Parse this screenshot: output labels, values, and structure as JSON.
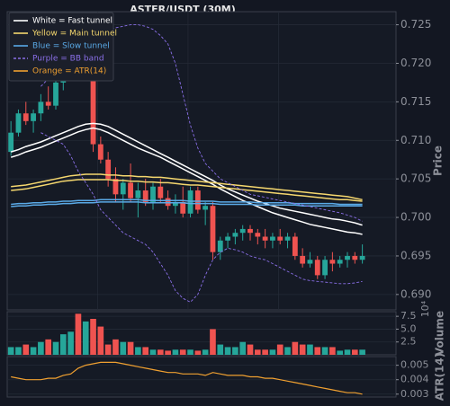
{
  "chart_data": [
    {
      "type": "candlestick",
      "title": "ASTER/USDT (30M)",
      "ylabel": "Price",
      "up_color": "#26a69a",
      "down_color": "#ef5350",
      "grid": true,
      "legend": "upper left",
      "ylim": [
        0.688,
        0.7267
      ],
      "yticks": [
        {
          "value": 0.69,
          "label": "0.690"
        },
        0.695,
        {
          "value": 0.7,
          "label": "0.700"
        },
        0.705,
        {
          "value": 0.71,
          "label": "0.710"
        },
        0.715,
        {
          "value": 0.72,
          "label": "0.720"
        },
        0.725
      ],
      "open": [
        0.7085,
        0.711,
        0.7135,
        0.7125,
        0.7135,
        0.715,
        0.7145,
        0.7175,
        0.719,
        0.7205,
        0.719,
        0.721,
        0.7095,
        0.7075,
        0.705,
        0.703,
        0.7045,
        0.7025,
        0.7035,
        0.702,
        0.704,
        0.7025,
        0.7015,
        0.702,
        0.7005,
        0.7035,
        0.701,
        0.7015,
        0.6955,
        0.697,
        0.6975,
        0.698,
        0.6985,
        0.698,
        0.6975,
        0.697,
        0.6975,
        0.697,
        0.6975,
        0.695,
        0.694,
        0.6945,
        0.6925,
        0.6945,
        0.694,
        0.6945,
        0.695,
        0.6945
      ],
      "high": [
        0.7125,
        0.714,
        0.715,
        0.714,
        0.716,
        0.717,
        0.7185,
        0.72,
        0.7215,
        0.7225,
        0.723,
        0.722,
        0.7105,
        0.7085,
        0.7065,
        0.705,
        0.707,
        0.7045,
        0.705,
        0.7045,
        0.705,
        0.7035,
        0.703,
        0.704,
        0.704,
        0.704,
        0.702,
        0.702,
        0.6975,
        0.698,
        0.6985,
        0.699,
        0.699,
        0.6985,
        0.6985,
        0.698,
        0.6985,
        0.698,
        0.698,
        0.696,
        0.6955,
        0.695,
        0.695,
        0.6955,
        0.695,
        0.6955,
        0.6955,
        0.6965
      ],
      "low": [
        0.708,
        0.7105,
        0.712,
        0.711,
        0.7125,
        0.714,
        0.714,
        0.7165,
        0.718,
        0.718,
        0.7185,
        0.7085,
        0.707,
        0.704,
        0.702,
        0.701,
        0.702,
        0.7,
        0.7015,
        0.701,
        0.702,
        0.701,
        0.7005,
        0.7,
        0.7,
        0.7005,
        0.699,
        0.6945,
        0.6945,
        0.696,
        0.6965,
        0.697,
        0.697,
        0.6965,
        0.696,
        0.696,
        0.6965,
        0.696,
        0.6945,
        0.6935,
        0.6935,
        0.692,
        0.692,
        0.693,
        0.6935,
        0.6935,
        0.694,
        0.694
      ],
      "close": [
        0.711,
        0.7135,
        0.7125,
        0.7135,
        0.715,
        0.7145,
        0.7175,
        0.719,
        0.7205,
        0.719,
        0.721,
        0.7095,
        0.7075,
        0.705,
        0.703,
        0.7045,
        0.7025,
        0.7035,
        0.702,
        0.704,
        0.7025,
        0.7015,
        0.702,
        0.7005,
        0.7035,
        0.701,
        0.7015,
        0.6955,
        0.697,
        0.6975,
        0.698,
        0.6985,
        0.698,
        0.6975,
        0.697,
        0.6975,
        0.697,
        0.6975,
        0.695,
        0.694,
        0.6945,
        0.6925,
        0.6945,
        0.694,
        0.6945,
        0.695,
        0.6945,
        0.695
      ],
      "series": [
        {
          "name": "White = Fast tunnel",
          "color": "#ffffff",
          "dashed": false,
          "upper": [
            0.7085,
            0.7088,
            0.7092,
            0.7095,
            0.7098,
            0.7102,
            0.7106,
            0.711,
            0.7114,
            0.7118,
            0.7121,
            0.7122,
            0.7121,
            0.7118,
            0.7113,
            0.7108,
            0.7103,
            0.7098,
            0.7093,
            0.7088,
            0.7083,
            0.7078,
            0.7073,
            0.7068,
            0.7063,
            0.7058,
            0.7053,
            0.7048,
            0.7042,
            0.7037,
            0.7033,
            0.7029,
            0.7025,
            0.7021,
            0.7018,
            0.7015,
            0.7012,
            0.701,
            0.7008,
            0.7006,
            0.7004,
            0.7002,
            0.7,
            0.6998,
            0.6997,
            0.6995,
            0.6993,
            0.699
          ],
          "lower": [
            0.7078,
            0.7081,
            0.7085,
            0.7088,
            0.7091,
            0.7095,
            0.7099,
            0.7103,
            0.7107,
            0.7111,
            0.7114,
            0.7116,
            0.7114,
            0.711,
            0.7105,
            0.71,
            0.7095,
            0.709,
            0.7086,
            0.7082,
            0.7078,
            0.7073,
            0.7068,
            0.7063,
            0.7058,
            0.7053,
            0.7048,
            0.7043,
            0.7037,
            0.7032,
            0.7027,
            0.7022,
            0.7018,
            0.7014,
            0.701,
            0.7006,
            0.7003,
            0.7,
            0.6997,
            0.6994,
            0.6991,
            0.6989,
            0.6987,
            0.6985,
            0.6983,
            0.6981,
            0.698,
            0.6978
          ]
        },
        {
          "name": "Yellow = Main tunnel",
          "color": "#f5d76e",
          "dashed": false,
          "upper": [
            0.704,
            0.7041,
            0.7042,
            0.7044,
            0.7046,
            0.7048,
            0.705,
            0.7052,
            0.7054,
            0.7055,
            0.7056,
            0.7056,
            0.7056,
            0.7055,
            0.7055,
            0.7054,
            0.7054,
            0.7053,
            0.7053,
            0.7052,
            0.7052,
            0.7051,
            0.705,
            0.7049,
            0.7048,
            0.7047,
            0.7046,
            0.7045,
            0.7044,
            0.7043,
            0.7042,
            0.7041,
            0.704,
            0.7039,
            0.7038,
            0.7037,
            0.7036,
            0.7035,
            0.7034,
            0.7033,
            0.7032,
            0.7031,
            0.703,
            0.7029,
            0.7028,
            0.7027,
            0.7025,
            0.7023
          ],
          "lower": [
            0.7035,
            0.7036,
            0.7037,
            0.7039,
            0.7041,
            0.7043,
            0.7045,
            0.7047,
            0.7048,
            0.7049,
            0.7049,
            0.7049,
            0.7049,
            0.7049,
            0.7048,
            0.7048,
            0.7047,
            0.7047,
            0.7046,
            0.7046,
            0.7045,
            0.7045,
            0.7044,
            0.7043,
            0.7042,
            0.7042,
            0.7041,
            0.704,
            0.7039,
            0.7038,
            0.7037,
            0.7036,
            0.7035,
            0.7034,
            0.7033,
            0.7032,
            0.7031,
            0.703,
            0.7029,
            0.7028,
            0.7027,
            0.7026,
            0.7025,
            0.7024,
            0.7023,
            0.7023,
            0.7022,
            0.7021
          ]
        },
        {
          "name": "Blue = Slow tunnel",
          "color": "#5aa9e6",
          "dashed": false,
          "upper": [
            0.7017,
            0.7018,
            0.7018,
            0.7019,
            0.7019,
            0.702,
            0.702,
            0.7021,
            0.7021,
            0.7022,
            0.7022,
            0.7022,
            0.7023,
            0.7023,
            0.7023,
            0.7023,
            0.7023,
            0.7023,
            0.7022,
            0.7022,
            0.7022,
            0.7022,
            0.7022,
            0.7022,
            0.7021,
            0.7021,
            0.7021,
            0.7021,
            0.702,
            0.702,
            0.702,
            0.702,
            0.702,
            0.7019,
            0.7019,
            0.7019,
            0.7019,
            0.7019,
            0.7018,
            0.7018,
            0.7018,
            0.7018,
            0.7018,
            0.7018,
            0.7017,
            0.7017,
            0.7017,
            0.7017
          ],
          "lower": [
            0.7014,
            0.7015,
            0.7015,
            0.7016,
            0.7016,
            0.7017,
            0.7017,
            0.7018,
            0.7018,
            0.7019,
            0.7019,
            0.7019,
            0.702,
            0.702,
            0.702,
            0.702,
            0.702,
            0.702,
            0.7019,
            0.7019,
            0.7019,
            0.7019,
            0.7019,
            0.7019,
            0.7018,
            0.7018,
            0.7018,
            0.7018,
            0.7017,
            0.7017,
            0.7017,
            0.7017,
            0.7017,
            0.7016,
            0.7016,
            0.7016,
            0.7016,
            0.7016,
            0.7016,
            0.7015,
            0.7015,
            0.7015,
            0.7015,
            0.7015,
            0.7015,
            0.7015,
            0.7015,
            0.7015
          ]
        },
        {
          "name": "Purple = BB band",
          "color": "#8a6fe8",
          "dashed": true,
          "upper": [
            null,
            null,
            null,
            null,
            0.717,
            0.718,
            0.719,
            0.72,
            0.7215,
            0.7225,
            0.7235,
            0.724,
            0.7242,
            0.7244,
            0.7246,
            0.7248,
            0.725,
            0.725,
            0.7248,
            0.7244,
            0.7236,
            0.7225,
            0.72,
            0.716,
            0.712,
            0.709,
            0.707,
            0.706,
            0.705,
            0.7045,
            0.704,
            0.7035,
            0.703,
            0.7028,
            0.7026,
            0.7024,
            0.7022,
            0.702,
            0.7018,
            0.7016,
            0.7014,
            0.7012,
            0.701,
            0.7008,
            0.7006,
            0.7003,
            0.7,
            0.6995
          ],
          "lower": [
            null,
            null,
            null,
            null,
            0.711,
            0.7105,
            0.71,
            0.7095,
            0.708,
            0.706,
            0.7045,
            0.703,
            0.701,
            0.7,
            0.699,
            0.698,
            0.6975,
            0.697,
            0.6965,
            0.6955,
            0.694,
            0.6925,
            0.6905,
            0.6895,
            0.689,
            0.69,
            0.6925,
            0.6945,
            0.6955,
            0.696,
            0.6958,
            0.6955,
            0.695,
            0.6947,
            0.6945,
            0.694,
            0.6935,
            0.693,
            0.6925,
            0.692,
            0.6918,
            0.6917,
            0.6916,
            0.6915,
            0.6914,
            0.6914,
            0.6915,
            0.6917
          ]
        }
      ]
    },
    {
      "type": "bar",
      "ylabel": "Volume",
      "offset_label": "10⁴",
      "ylim": [
        0,
        8.4
      ],
      "yticks": [
        2.5,
        {
          "value": 5,
          "label": "5.0"
        },
        7.5
      ],
      "values": [
        1.5,
        1.5,
        2,
        1.5,
        2.5,
        3,
        2.5,
        4,
        4.5,
        8,
        6.5,
        7,
        5.5,
        2,
        3,
        2.5,
        2.5,
        1.5,
        1.5,
        1,
        1,
        0.8,
        1,
        1,
        1,
        0.8,
        1,
        5,
        2,
        1.5,
        1.5,
        2.5,
        2,
        1,
        1,
        1,
        2,
        1.5,
        2.5,
        2,
        2,
        1.5,
        1.5,
        1.5,
        0.8,
        1,
        1,
        1
      ]
    },
    {
      "type": "line",
      "ylabel": "ATR(14)",
      "ylim": [
        0.0028,
        0.0056
      ],
      "yticks": [
        0.003,
        0.004,
        0.005
      ],
      "series": [
        {
          "name": "Orange = ATR(14)",
          "color": "#f0a030",
          "values": [
            0.0042,
            0.0041,
            0.004,
            0.004,
            0.004,
            0.0041,
            0.0041,
            0.0043,
            0.0044,
            0.0048,
            0.005,
            0.0051,
            0.0052,
            0.0052,
            0.0052,
            0.0051,
            0.005,
            0.0049,
            0.0048,
            0.0047,
            0.0046,
            0.0045,
            0.0045,
            0.0044,
            0.0044,
            0.0044,
            0.0043,
            0.0045,
            0.0044,
            0.0043,
            0.0043,
            0.0043,
            0.0042,
            0.0042,
            0.0041,
            0.0041,
            0.004,
            0.0039,
            0.0038,
            0.0037,
            0.0036,
            0.0035,
            0.0034,
            0.0033,
            0.0032,
            0.0031,
            0.0031,
            0.003
          ]
        }
      ]
    }
  ]
}
